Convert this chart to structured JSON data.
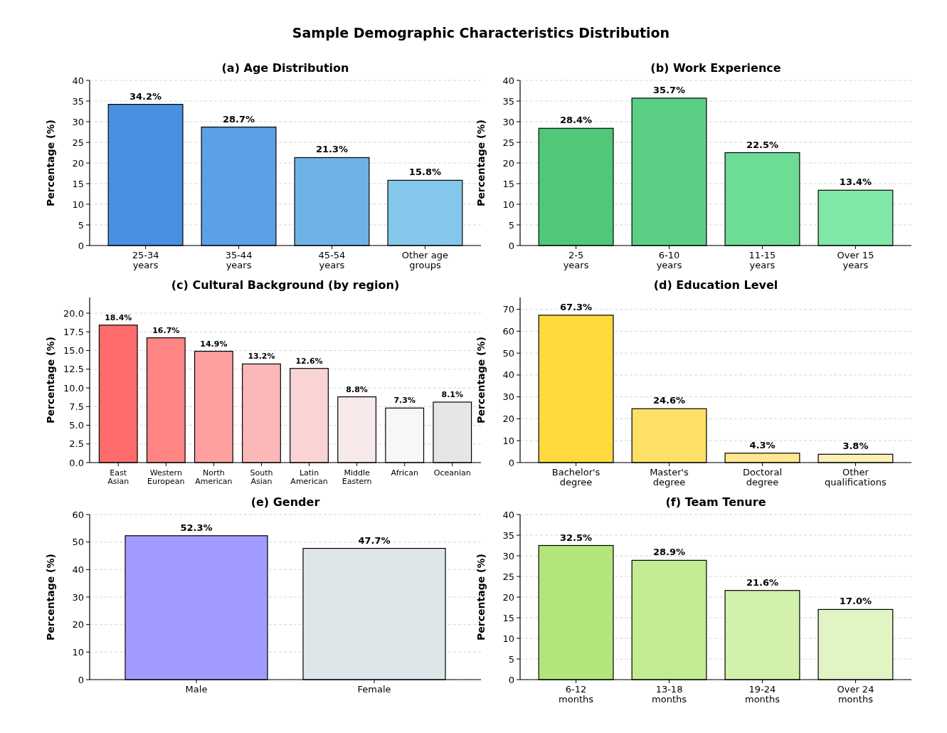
{
  "chart_data": [
    {
      "type": "bar",
      "title": "(a) Age Distribution",
      "annotations": [
        "Sample Demographic Characteristics Distribution"
      ],
      "ylabel": "Percentage (%)",
      "categories": [
        "25-34\nyears",
        "35-44\nyears",
        "45-54\nyears",
        "Other age\ngroups"
      ],
      "values": [
        34.2,
        28.7,
        21.3,
        15.8
      ],
      "value_labels": [
        "34.2%",
        "28.7%",
        "21.3%",
        "15.8%"
      ],
      "colors": [
        "#4a90e2",
        "#5ba1e5",
        "#6db3e8",
        "#83c8ea"
      ],
      "ylim": [
        0,
        40
      ],
      "yticks": [
        0,
        5,
        10,
        15,
        20,
        25,
        30,
        35,
        40
      ],
      "grid": "y"
    },
    {
      "type": "bar",
      "title": "(b) Work Experience",
      "ylabel": "Percentage (%)",
      "categories": [
        "2-5\nyears",
        "6-10\nyears",
        "11-15\nyears",
        "Over 15\nyears"
      ],
      "values": [
        28.4,
        35.7,
        22.5,
        13.4
      ],
      "value_labels": [
        "28.4%",
        "35.7%",
        "22.5%",
        "13.4%"
      ],
      "colors": [
        "#50c878",
        "#5bd085",
        "#6ddc95",
        "#80e8a6"
      ],
      "ylim": [
        0,
        40
      ],
      "yticks": [
        0,
        5,
        10,
        15,
        20,
        25,
        30,
        35,
        40
      ],
      "grid": "y"
    },
    {
      "type": "bar",
      "title": "(c) Cultural Background (by region)",
      "ylabel": "Percentage (%)",
      "categories": [
        "East\nAsian",
        "Western\nEuropean",
        "North\nAmerican",
        "South\nAsian",
        "Latin\nAmerican",
        "Middle\nEastern",
        "African",
        "Oceanian"
      ],
      "values": [
        18.4,
        16.7,
        14.9,
        13.2,
        12.6,
        8.8,
        7.3,
        8.1
      ],
      "value_labels": [
        "18.4%",
        "16.7%",
        "14.9%",
        "13.2%",
        "12.6%",
        "8.8%",
        "7.3%",
        "8.1%"
      ],
      "colors": [
        "#ff6b6b",
        "#ff8585",
        "#ffa0a0",
        "#fbb8b8",
        "#fad4d4",
        "#f8eaea",
        "#f7f7f7",
        "#e6e6e6"
      ],
      "ylim": [
        0,
        22.1
      ],
      "yticks": [
        {
          "value": 0,
          "label": "0.0"
        },
        {
          "value": 2.5,
          "label": "2.5"
        },
        {
          "value": 5,
          "label": "5.0"
        },
        {
          "value": 7.5,
          "label": "7.5"
        },
        {
          "value": 10,
          "label": "10.0"
        },
        {
          "value": 12.5,
          "label": "12.5"
        },
        {
          "value": 15,
          "label": "15.0"
        },
        {
          "value": 17.5,
          "label": "17.5"
        },
        {
          "value": 20,
          "label": "20.0"
        }
      ],
      "grid": "y"
    },
    {
      "type": "bar",
      "title": "(d) Education Level",
      "ylabel": "Percentage (%)",
      "categories": [
        "Bachelor's\ndegree",
        "Master's\ndegree",
        "Doctoral\ndegree",
        "Other\nqualifications"
      ],
      "values": [
        67.3,
        24.6,
        4.3,
        3.8
      ],
      "value_labels": [
        "67.3%",
        "24.6%",
        "4.3%",
        "3.8%"
      ],
      "colors": [
        "#ffd93d",
        "#ffe066",
        "#ffe88f",
        "#fff0b8"
      ],
      "ylim": [
        0,
        75.4
      ],
      "yticks": [
        0,
        10,
        20,
        30,
        40,
        50,
        60,
        70
      ],
      "grid": "y"
    },
    {
      "type": "bar",
      "title": "(e) Gender",
      "ylabel": "Percentage (%)",
      "categories": [
        "Male",
        "Female"
      ],
      "values": [
        52.3,
        47.7
      ],
      "value_labels": [
        "52.3%",
        "47.7%"
      ],
      "colors": [
        "#a29bfe",
        "#dfe6e9"
      ],
      "ylim": [
        0,
        60
      ],
      "yticks": [
        0,
        10,
        20,
        30,
        40,
        50,
        60
      ],
      "grid": "y"
    },
    {
      "type": "bar",
      "title": "(f) Team Tenure",
      "ylabel": "Percentage (%)",
      "categories": [
        "6-12\nmonths",
        "13-18\nmonths",
        "19-24\nmonths",
        "Over 24\nmonths"
      ],
      "values": [
        32.5,
        28.9,
        21.6,
        17.0
      ],
      "value_labels": [
        "32.5%",
        "28.9%",
        "21.6%",
        "17.0%"
      ],
      "colors": [
        "#b2e67b",
        "#c3ec92",
        "#d2f2ab",
        "#e0f5c3"
      ],
      "ylim": [
        0,
        40
      ],
      "yticks": [
        0,
        5,
        10,
        15,
        20,
        25,
        30,
        35,
        40
      ],
      "grid": "y"
    }
  ]
}
